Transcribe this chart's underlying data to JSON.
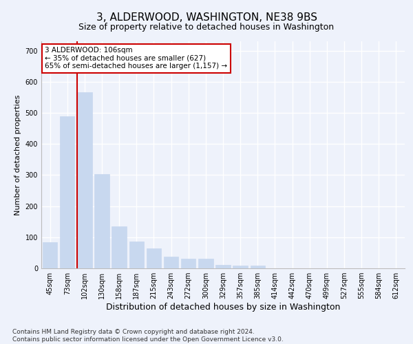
{
  "title": "3, ALDERWOOD, WASHINGTON, NE38 9BS",
  "subtitle": "Size of property relative to detached houses in Washington",
  "xlabel": "Distribution of detached houses by size in Washington",
  "ylabel": "Number of detached properties",
  "bar_labels": [
    "45sqm",
    "73sqm",
    "102sqm",
    "130sqm",
    "158sqm",
    "187sqm",
    "215sqm",
    "243sqm",
    "272sqm",
    "300sqm",
    "329sqm",
    "357sqm",
    "385sqm",
    "414sqm",
    "442sqm",
    "470sqm",
    "499sqm",
    "527sqm",
    "555sqm",
    "584sqm",
    "612sqm"
  ],
  "bar_values": [
    83,
    488,
    567,
    302,
    135,
    87,
    65,
    38,
    30,
    30,
    10,
    8,
    8,
    0,
    0,
    0,
    0,
    0,
    0,
    0,
    0
  ],
  "bar_color": "#c8d8ef",
  "bar_edgecolor": "#c8d8ef",
  "highlight_line_color": "#cc0000",
  "annotation_text": "3 ALDERWOOD: 106sqm\n← 35% of detached houses are smaller (627)\n65% of semi-detached houses are larger (1,157) →",
  "annotation_box_color": "#ffffff",
  "annotation_box_edgecolor": "#cc0000",
  "ylim": [
    0,
    730
  ],
  "yticks": [
    0,
    100,
    200,
    300,
    400,
    500,
    600,
    700
  ],
  "footnote": "Contains HM Land Registry data © Crown copyright and database right 2024.\nContains public sector information licensed under the Open Government Licence v3.0.",
  "background_color": "#eef2fb",
  "grid_color": "#ffffff",
  "title_fontsize": 11,
  "xlabel_fontsize": 9,
  "ylabel_fontsize": 8,
  "tick_fontsize": 7,
  "footnote_fontsize": 6.5
}
